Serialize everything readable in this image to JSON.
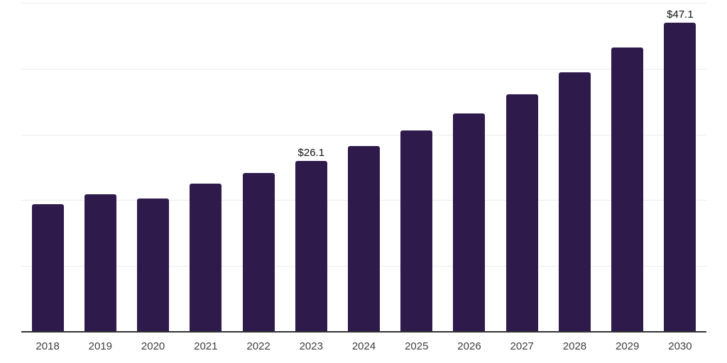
{
  "chart_data": {
    "type": "bar",
    "title": "",
    "xlabel": "",
    "ylabel": "",
    "categories": [
      "2018",
      "2019",
      "2020",
      "2021",
      "2022",
      "2023",
      "2024",
      "2025",
      "2026",
      "2027",
      "2028",
      "2029",
      "2030"
    ],
    "values": [
      19.5,
      21.0,
      20.4,
      22.6,
      24.2,
      26.1,
      28.3,
      30.7,
      33.3,
      36.2,
      39.5,
      43.3,
      47.1
    ],
    "bar_labels": [
      "",
      "",
      "",
      "",
      "",
      "$26.1",
      "",
      "",
      "",
      "",
      "",
      "",
      "$47.1"
    ],
    "ylim": [
      0,
      50
    ],
    "grid_step": 10,
    "grid": true,
    "y_axis_tick_labels_visible": false,
    "legend_position": "none",
    "colors": {
      "bar": "#2f1a4c",
      "gridline": "#ededed",
      "axis_line": "#333333",
      "tick_label": "#3d3d3d",
      "value_label": "#111111",
      "background": "#ffffff"
    }
  }
}
